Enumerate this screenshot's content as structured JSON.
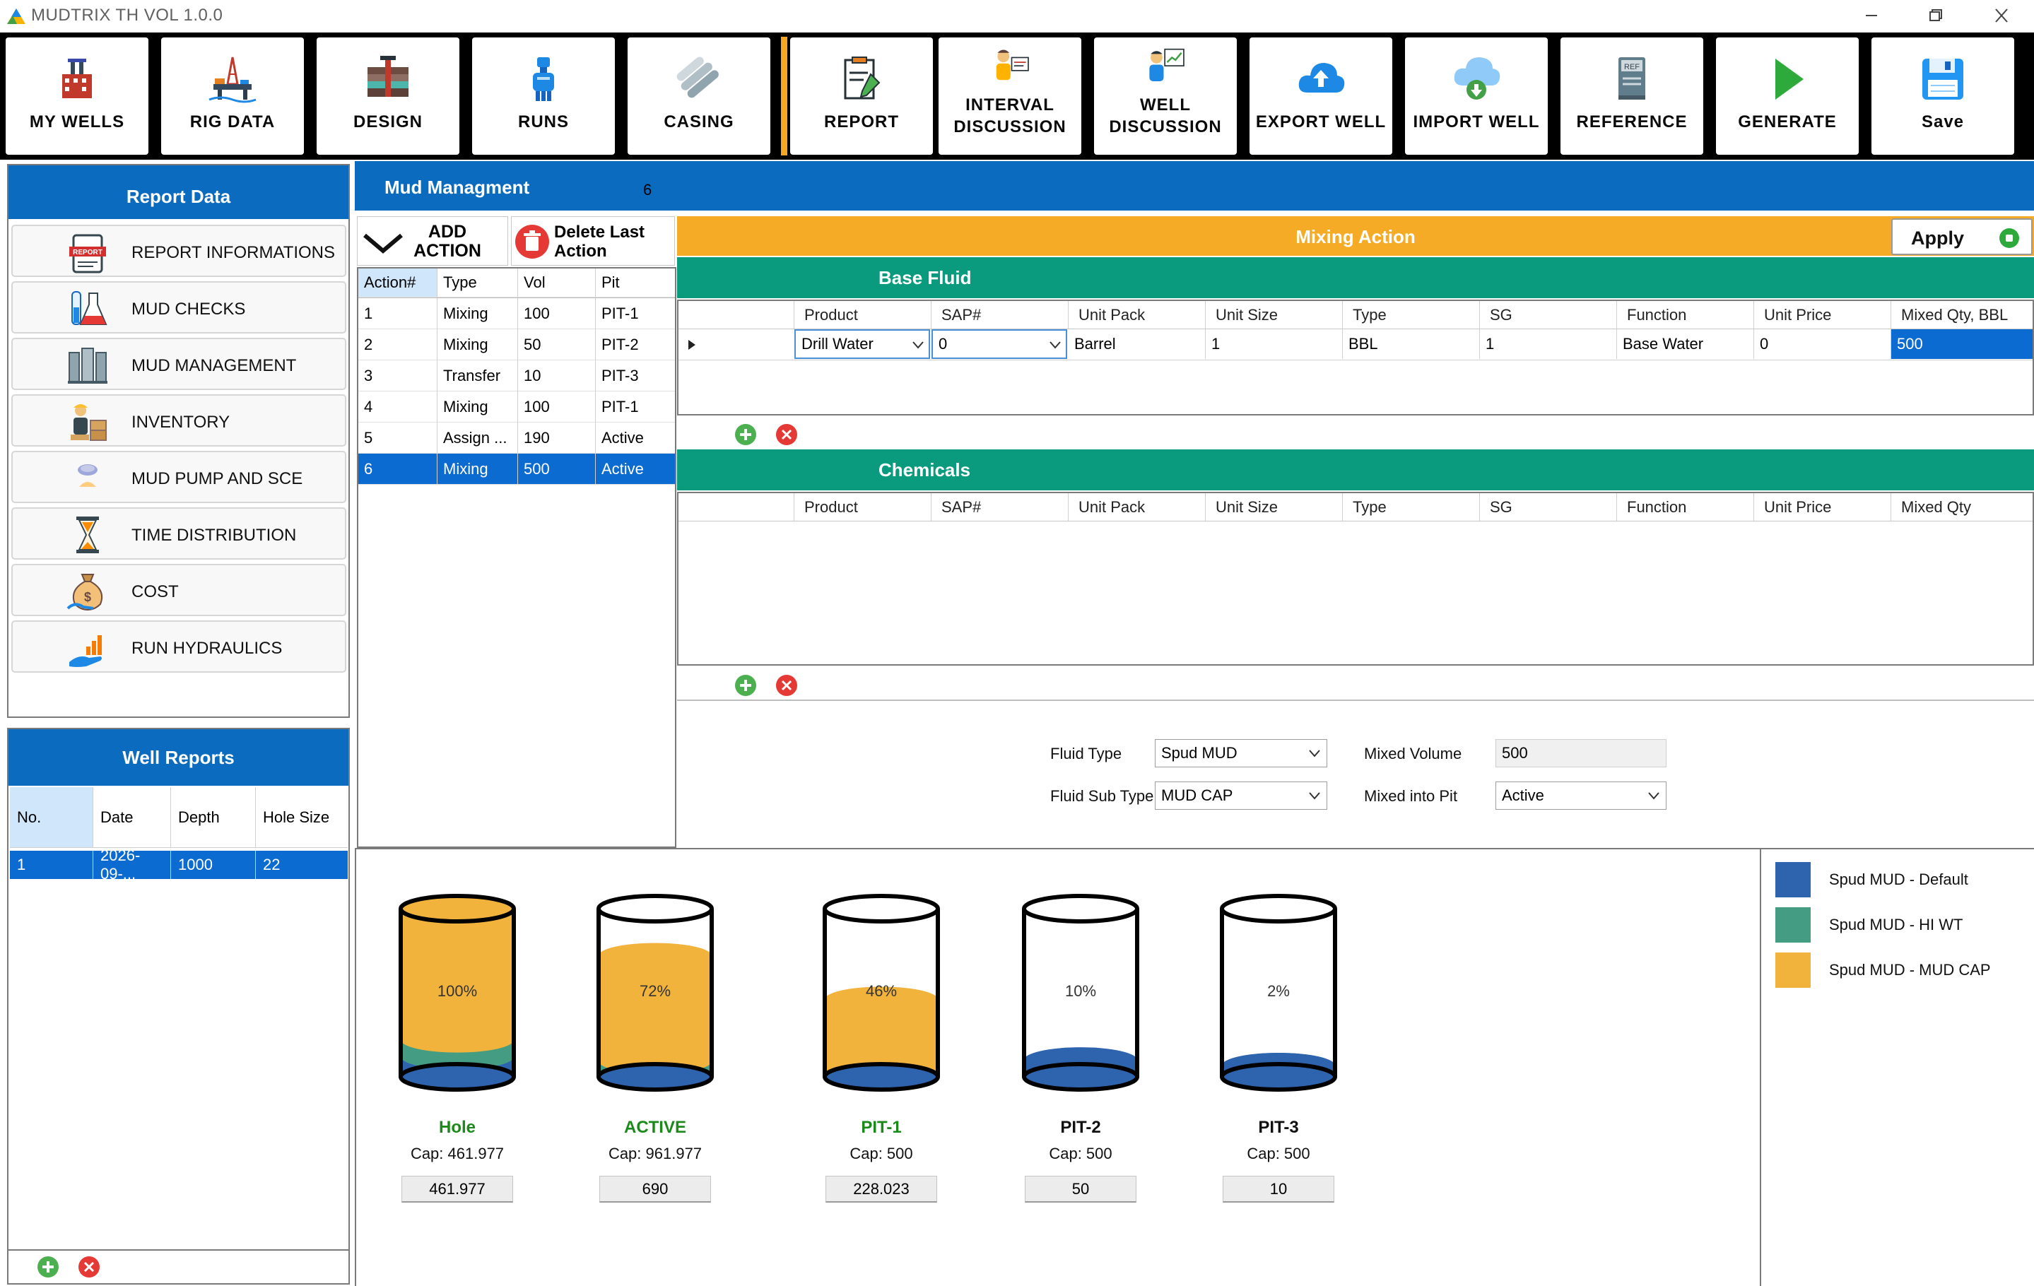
{
  "window": {
    "title": "MUDTRIX TH VOL 1.0.0"
  },
  "toolbar": {
    "items": [
      {
        "label": "MY WELLS",
        "icon": "wells-icon"
      },
      {
        "label": "RIG DATA",
        "icon": "rig-icon"
      },
      {
        "label": "DESIGN",
        "icon": "design-icon"
      },
      {
        "label": "RUNS",
        "icon": "runs-icon"
      },
      {
        "label": "CASING",
        "icon": "casing-icon"
      },
      {
        "label": "REPORT",
        "icon": "report-icon"
      },
      {
        "label": "INTERVAL DISCUSSION",
        "line1": "INTERVAL",
        "line2": "DISCUSSION",
        "icon": "interval-discussion-icon"
      },
      {
        "label": "WELL DISCUSSION",
        "line1": "WELL",
        "line2": "DISCUSSION",
        "icon": "well-discussion-icon"
      },
      {
        "label": "EXPORT WELL",
        "icon": "cloud-upload-icon"
      },
      {
        "label": "IMPORT WELL",
        "icon": "cloud-download-icon"
      },
      {
        "label": "REFERENCE",
        "icon": "reference-book-icon"
      },
      {
        "label": "GENERATE",
        "icon": "play-icon"
      },
      {
        "label": "Save",
        "icon": "floppy-disk-icon"
      }
    ]
  },
  "report_panel": {
    "title": "Report Data",
    "items": [
      {
        "label": "REPORT INFORMATIONS",
        "icon": "report-clipboard-icon"
      },
      {
        "label": "MUD CHECKS",
        "icon": "lab-flask-icon"
      },
      {
        "label": "MUD MANAGEMENT",
        "icon": "tanks-icon"
      },
      {
        "label": "INVENTORY",
        "icon": "worker-boxes-icon"
      },
      {
        "label": "MUD PUMP AND SCE",
        "icon": "pump-icon"
      },
      {
        "label": "TIME DISTRIBUTION",
        "icon": "hourglass-icon"
      },
      {
        "label": "COST",
        "icon": "money-bag-icon"
      },
      {
        "label": "RUN HYDRAULICS",
        "icon": "chart-hand-icon"
      }
    ]
  },
  "well_reports": {
    "title": "Well Reports",
    "columns": [
      "No.",
      "Date",
      "Depth",
      "Hole Size"
    ],
    "rows": [
      {
        "no": "1",
        "date": "2026-09-...",
        "depth": "1000",
        "hole_size": "22"
      }
    ]
  },
  "mud_management": {
    "title": "Mud Managment",
    "count": "6",
    "add_action_label": "ADD ACTION",
    "add_line1": "ADD",
    "add_line2": "ACTION",
    "delete_line1": "Delete Last",
    "delete_line2": "Action",
    "actions_columns": [
      "Action#",
      "Type",
      "Vol",
      "Pit"
    ],
    "actions": [
      {
        "num": "1",
        "type": "Mixing",
        "vol": "100",
        "pit": "PIT-1"
      },
      {
        "num": "2",
        "type": "Mixing",
        "vol": "50",
        "pit": "PIT-2"
      },
      {
        "num": "3",
        "type": "Transfer",
        "vol": "10",
        "pit": "PIT-3"
      },
      {
        "num": "4",
        "type": "Mixing",
        "vol": "100",
        "pit": "PIT-1"
      },
      {
        "num": "5",
        "type": "Assign ...",
        "vol": "190",
        "pit": "Active"
      },
      {
        "num": "6",
        "type": "Mixing",
        "vol": "500",
        "pit": "Active"
      }
    ],
    "selected_action": "6"
  },
  "mixing_action": {
    "title": "Mixing Action",
    "apply_label": "Apply",
    "base_fluid": {
      "title": "Base Fluid",
      "columns": [
        "Product",
        "SAP#",
        "Unit Pack",
        "Unit Size",
        "Type",
        "SG",
        "Function",
        "Unit Price",
        "Mixed Qty, BBL"
      ],
      "row": {
        "product": "Drill Water",
        "sap": "0",
        "unit_pack": "Barrel",
        "unit_size": "1",
        "type": "BBL",
        "sg": "1",
        "function": "Base Water",
        "unit_price": "0",
        "mixed_qty": "500"
      }
    },
    "chemicals": {
      "title": "Chemicals",
      "columns": [
        "Product",
        "SAP#",
        "Unit Pack",
        "Unit Size",
        "Type",
        "SG",
        "Function",
        "Unit Price",
        "Mixed Qty"
      ]
    },
    "fluid_type_label": "Fluid Type",
    "fluid_type": "Spud MUD",
    "fluid_sub_type_label": "Fluid Sub Type",
    "fluid_sub_type": "MUD CAP",
    "mixed_volume_label": "Mixed Volume",
    "mixed_volume": "500",
    "mixed_into_pit_label": "Mixed into Pit",
    "mixed_into_pit": "Active"
  },
  "tanks": [
    {
      "name": "Hole",
      "cap_text": "Cap: 461.977",
      "value": "461.977",
      "pct_text": "100%",
      "fill_pct": 100,
      "name_color": "#1b8a1b",
      "layers": {
        "default": 0.12,
        "hiwt": 0.1,
        "mudcap": 0.78
      }
    },
    {
      "name": "ACTIVE",
      "cap_text": "Cap: 961.977",
      "value": "690",
      "pct_text": "72%",
      "fill_pct": 72,
      "name_color": "#1b8a1b",
      "layers": {
        "default": 0.05,
        "hiwt": 0.08,
        "mudcap": 0.87
      }
    },
    {
      "name": "PIT-1",
      "cap_text": "Cap: 500",
      "value": "228.023",
      "pct_text": "46%",
      "fill_pct": 46,
      "name_color": "#1b8a1b",
      "layers": {
        "default": 0.05,
        "hiwt": 0.05,
        "mudcap": 0.9
      }
    },
    {
      "name": "PIT-2",
      "cap_text": "Cap: 500",
      "value": "50",
      "pct_text": "10%",
      "fill_pct": 10,
      "name_color": "#111111",
      "layers": {
        "default": 1.0,
        "hiwt": 0,
        "mudcap": 0
      }
    },
    {
      "name": "PIT-3",
      "cap_text": "Cap: 500",
      "value": "10",
      "pct_text": "2%",
      "fill_pct": 2,
      "name_color": "#111111",
      "layers": {
        "default": 1.0,
        "hiwt": 0,
        "mudcap": 0
      }
    }
  ],
  "legend": [
    {
      "label": "Spud MUD - Default",
      "color": "#2e63ad"
    },
    {
      "label": "Spud MUD - HI WT",
      "color": "#449c82"
    },
    {
      "label": "Spud MUD - MUD CAP",
      "color": "#f2b33d"
    }
  ],
  "colors": {
    "header_blue": "#0b6bbf",
    "mixing_orange": "#f5ab25",
    "section_green": "#0a9b7f",
    "selection_blue": "#0b6bd1"
  }
}
